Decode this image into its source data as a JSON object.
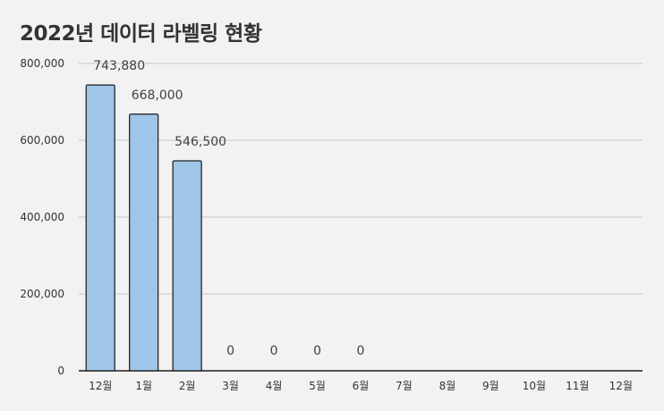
{
  "chart_data": {
    "type": "bar",
    "title": "2022년 데이터 라벨링 현황",
    "categories": [
      "12월",
      "1월",
      "2월",
      "3월",
      "4월",
      "5월",
      "6월",
      "7월",
      "8월",
      "9월",
      "10월",
      "11월",
      "12월"
    ],
    "values": [
      743880,
      668000,
      546500,
      0,
      0,
      0,
      0,
      null,
      null,
      null,
      null,
      null,
      null
    ],
    "data_labels": [
      "743,880",
      "668,000",
      "546,500",
      "0",
      "0",
      "0",
      "0",
      "",
      "",
      "",
      "",
      "",
      ""
    ],
    "yticks": [
      "0",
      "200,000",
      "400,000",
      "600,000",
      "800,000"
    ],
    "ylim": [
      0,
      800000
    ],
    "xlabel": "",
    "ylabel": "",
    "grid": true,
    "bar_color": "#9fc5e8",
    "bar_edge_color": "#1a1a1a"
  }
}
